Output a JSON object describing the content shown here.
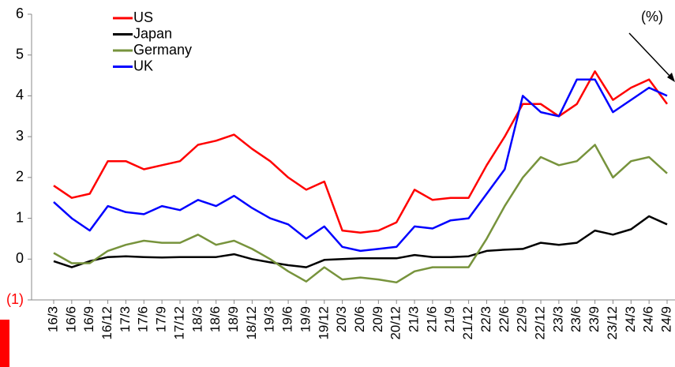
{
  "chart_data": {
    "type": "line",
    "annotation": "(%)",
    "categories": [
      "16/3",
      "16/6",
      "16/9",
      "16/12",
      "17/3",
      "17/6",
      "17/9",
      "17/12",
      "18/3",
      "18/6",
      "18/9",
      "18/12",
      "19/3",
      "19/6",
      "19/9",
      "19/12",
      "20/3",
      "20/6",
      "20/9",
      "20/12",
      "21/3",
      "21/6",
      "21/9",
      "21/12",
      "22/3",
      "22/6",
      "22/9",
      "22/12",
      "23/3",
      "23/6",
      "23/9",
      "23/12",
      "24/3",
      "24/6",
      "24/9"
    ],
    "series": [
      {
        "name": "US",
        "color": "#ff0000",
        "values": [
          1.8,
          1.5,
          1.6,
          2.4,
          2.4,
          2.2,
          2.3,
          2.4,
          2.8,
          2.9,
          3.05,
          2.7,
          2.4,
          2.0,
          1.7,
          1.9,
          0.7,
          0.65,
          0.7,
          0.9,
          1.7,
          1.45,
          1.5,
          1.5,
          2.3,
          3.0,
          3.8,
          3.8,
          3.5,
          3.8,
          4.6,
          3.9,
          4.2,
          4.4,
          3.8
        ]
      },
      {
        "name": "Japan",
        "color": "#000000",
        "values": [
          -0.05,
          -0.2,
          -0.05,
          0.05,
          0.07,
          0.05,
          0.04,
          0.05,
          0.05,
          0.05,
          0.12,
          0.0,
          -0.08,
          -0.15,
          -0.2,
          -0.02,
          0.0,
          0.02,
          0.02,
          0.02,
          0.1,
          0.05,
          0.05,
          0.07,
          0.2,
          0.23,
          0.25,
          0.4,
          0.35,
          0.4,
          0.7,
          0.6,
          0.73,
          1.05,
          0.85
        ]
      },
      {
        "name": "Germany",
        "color": "#77933c",
        "values": [
          0.15,
          -0.1,
          -0.1,
          0.2,
          0.35,
          0.45,
          0.4,
          0.4,
          0.6,
          0.35,
          0.45,
          0.25,
          0.0,
          -0.3,
          -0.55,
          -0.2,
          -0.5,
          -0.45,
          -0.5,
          -0.57,
          -0.3,
          -0.2,
          -0.2,
          -0.2,
          0.5,
          1.3,
          2.0,
          2.5,
          2.3,
          2.4,
          2.8,
          2.0,
          2.4,
          2.5,
          2.1
        ]
      },
      {
        "name": "UK",
        "color": "#0000ff",
        "values": [
          1.4,
          1.0,
          0.7,
          1.3,
          1.15,
          1.1,
          1.3,
          1.2,
          1.45,
          1.3,
          1.55,
          1.25,
          1.0,
          0.85,
          0.5,
          0.8,
          0.3,
          0.2,
          0.25,
          0.3,
          0.8,
          0.75,
          0.95,
          1.0,
          1.6,
          2.2,
          4.0,
          3.6,
          3.5,
          4.4,
          4.4,
          3.6,
          3.9,
          4.2,
          4.0
        ]
      }
    ],
    "ylim": [
      -1,
      6
    ],
    "yticks": [
      {
        "value": -1,
        "label": "(1)"
      },
      0,
      1,
      2,
      3,
      4,
      5,
      6
    ],
    "negative_tick_color": "#ff0000",
    "legend": "top-left"
  }
}
